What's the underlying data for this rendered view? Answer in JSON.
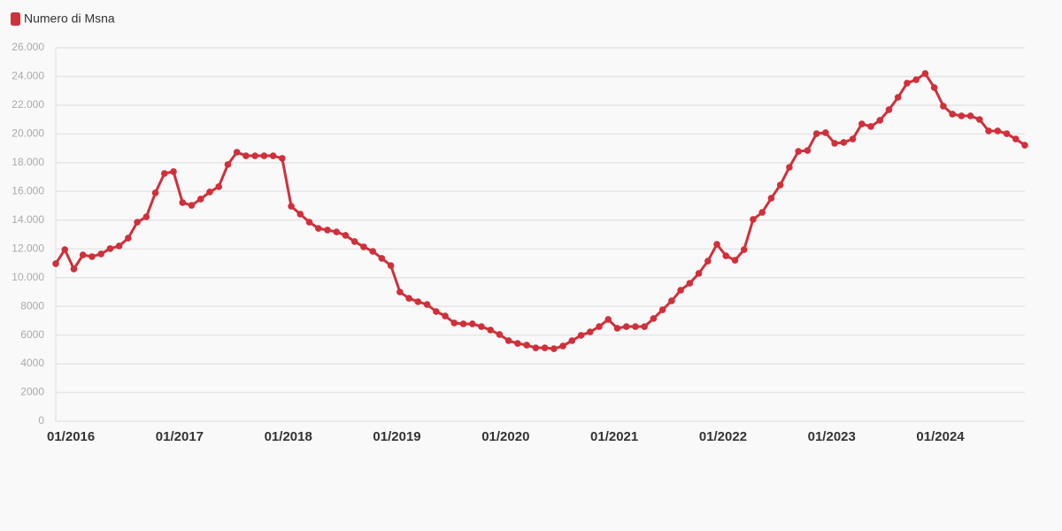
{
  "chart_data": {
    "type": "line",
    "series": [
      {
        "name": "Numero di Msna",
        "color": "#d0303a",
        "values": [
          10970,
          11950,
          10600,
          11580,
          11460,
          11650,
          12020,
          12200,
          12750,
          13860,
          14230,
          15900,
          17250,
          17380,
          15220,
          15030,
          15470,
          15960,
          16330,
          17870,
          18730,
          18480,
          18480,
          18480,
          18480,
          18300,
          14970,
          14420,
          13860,
          13430,
          13310,
          13180,
          12940,
          12510,
          12140,
          11830,
          11340,
          10840,
          9000,
          8560,
          8320,
          8130,
          7640,
          7330,
          6840,
          6780,
          6780,
          6590,
          6350,
          6040,
          5610,
          5420,
          5300,
          5110,
          5110,
          5050,
          5240,
          5610,
          5980,
          6220,
          6590,
          7090,
          6470,
          6590,
          6590,
          6590,
          7150,
          7760,
          8380,
          9120,
          9610,
          10290,
          11150,
          12320,
          11520,
          11210,
          11950,
          14050,
          14540,
          15530,
          16450,
          17680,
          18790,
          18850,
          20020,
          20090,
          19350,
          19410,
          19650,
          20700,
          20520,
          20950,
          21690,
          22550,
          23540,
          23780,
          24210,
          23230,
          21940,
          21380,
          21260,
          21260,
          21010,
          20210,
          20210,
          20020,
          19650,
          19220
        ]
      }
    ],
    "categories": [
      "01/2016",
      null,
      null,
      null,
      null,
      null,
      null,
      null,
      null,
      null,
      null,
      null,
      "01/2017",
      null,
      null,
      null,
      null,
      null,
      null,
      null,
      null,
      null,
      null,
      null,
      "01/2018",
      null,
      null,
      null,
      null,
      null,
      null,
      null,
      null,
      null,
      null,
      null,
      "01/2019",
      null,
      null,
      null,
      null,
      null,
      null,
      null,
      null,
      null,
      null,
      null,
      "01/2020",
      null,
      null,
      null,
      null,
      null,
      null,
      null,
      null,
      null,
      null,
      null,
      "01/2021",
      null,
      null,
      null,
      null,
      null,
      null,
      null,
      null,
      null,
      null,
      null,
      "01/2022",
      null,
      null,
      null,
      null,
      null,
      null,
      null,
      null,
      null,
      null,
      null,
      "01/2023",
      null,
      null,
      null,
      null,
      null,
      null,
      null,
      null,
      null,
      null,
      null,
      "01/2024",
      null,
      null,
      null,
      null,
      null,
      null,
      null,
      null,
      null,
      null,
      null
    ],
    "ylim": [
      0,
      26000
    ],
    "yticks": [
      0,
      2000,
      4000,
      6000,
      8000,
      {
        "value": 10000,
        "label": "10.000"
      },
      {
        "value": 12000,
        "label": "12.000"
      },
      {
        "value": 14000,
        "label": "14.000"
      },
      {
        "value": 16000,
        "label": "16.000"
      },
      {
        "value": 18000,
        "label": "18.000"
      },
      {
        "value": 20000,
        "label": "20.000"
      },
      {
        "value": 22000,
        "label": "22.000"
      },
      {
        "value": 24000,
        "label": "24.000"
      },
      {
        "value": 26000,
        "label": "26.000"
      }
    ],
    "grid": true
  }
}
